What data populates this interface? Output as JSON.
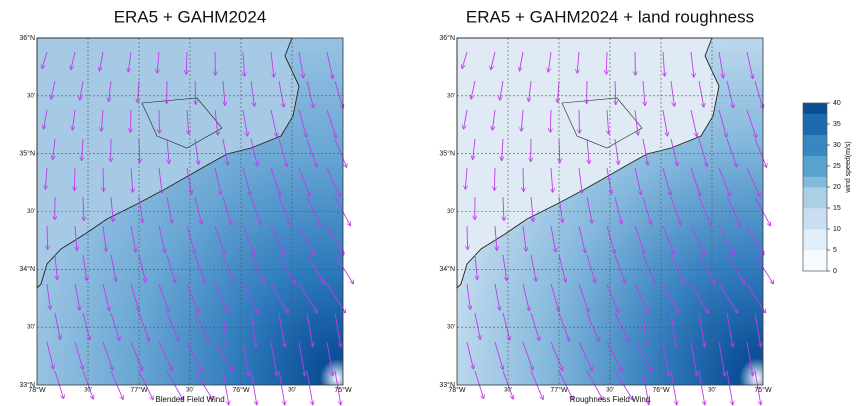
{
  "panels": [
    {
      "title": "ERA5 + GAHM2024",
      "xlabel": "Blended Field Wind"
    },
    {
      "title": "ERA5 + GAHM2024 + land roughness",
      "xlabel": "Roughness Field Wind"
    }
  ],
  "lat_labels": [
    "36°N",
    "30'",
    "35°N",
    "30'",
    "34°N",
    "30'",
    "33°N"
  ],
  "lon_labels": [
    "78°W",
    "30'",
    "77°W",
    "30'",
    "76°W",
    "30'",
    "75°W"
  ],
  "colorbar": {
    "label": "wind speed(m/s)",
    "lim": [
      0,
      40
    ],
    "ticks": [
      0,
      5,
      10,
      15,
      20,
      25,
      30,
      35,
      40
    ]
  }
}
